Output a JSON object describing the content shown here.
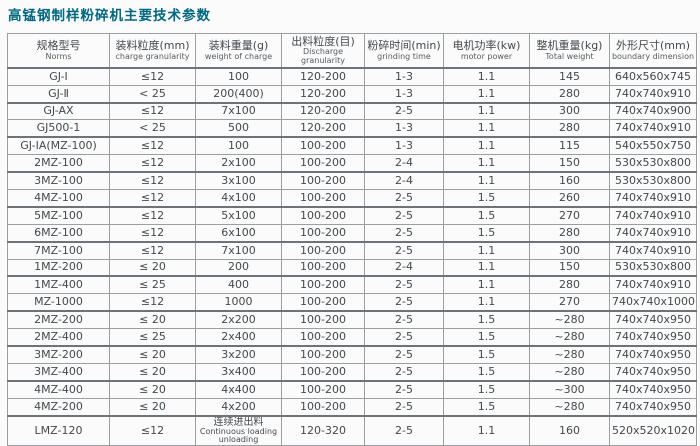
{
  "title": "高锰钢制样粉碎机主要技术参数",
  "colors": {
    "title_text": "#00677e",
    "body_text": "#43494d",
    "grid_line": "#9aa0a2",
    "grid_line_strong": "#6d7478",
    "background": "#fbfbfc"
  },
  "table": {
    "columns": [
      {
        "zh": "规格型号",
        "en": "Norms"
      },
      {
        "zh": "装料粒度(mm)",
        "en": "charge granularity"
      },
      {
        "zh": "装料重量(g)",
        "en": "weight of charge"
      },
      {
        "zh": "出料粒度(目)",
        "en": "Discharge granularity"
      },
      {
        "zh": "粉碎时间(min)",
        "en": "grinding time"
      },
      {
        "zh": "电机功率(kw)",
        "en": "motor power"
      },
      {
        "zh": "整机重量(kg)",
        "en": "Total weight"
      },
      {
        "zh": "外形尺寸(mm)",
        "en": "boundary dimension"
      }
    ],
    "rows": [
      [
        "GJ-Ⅰ",
        "≤12",
        "100",
        "120-200",
        "1-3",
        "1.1",
        "145",
        "640x560x745"
      ],
      [
        "GJ-Ⅱ",
        "< 25",
        "200(400)",
        "120-200",
        "1-3",
        "1.1",
        "280",
        "740x740x910"
      ],
      [
        "GJ-AX",
        "≤12",
        "7x100",
        "120-200",
        "2-5",
        "1.1",
        "300",
        "740x740x900"
      ],
      [
        "GJ500-1",
        "< 25",
        "500",
        "120-200",
        "1-3",
        "1.1",
        "280",
        "740x740x910"
      ],
      [
        "GJ-IA(MZ-100)",
        "≤12",
        "100",
        "100-200",
        "1-3",
        "1.1",
        "115",
        "540x550x750"
      ],
      [
        "2MZ-100",
        "≤12",
        "2x100",
        "100-200",
        "2-4",
        "1.1",
        "150",
        "530x530x800"
      ],
      [
        "3MZ-100",
        "≤12",
        "3x100",
        "100-200",
        "2-4",
        "1.1",
        "160",
        "530x530x800"
      ],
      [
        "4MZ-100",
        "≤12",
        "4x100",
        "100-200",
        "2-5",
        "1.5",
        "260",
        "740x740x910"
      ],
      [
        "5MZ-100",
        "≤12",
        "5x100",
        "100-200",
        "2-5",
        "1.5",
        "270",
        "740x740x910"
      ],
      [
        "6MZ-100",
        "≤12",
        "6x100",
        "100-200",
        "2-5",
        "1.5",
        "280",
        "740x740x910"
      ],
      [
        "7MZ-100",
        "≤12",
        "7x100",
        "100-200",
        "2-5",
        "1.1",
        "300",
        "740x740x910"
      ],
      [
        "1MZ-200",
        "≤ 20",
        "200",
        "100-200",
        "2-4",
        "1.1",
        "150",
        "530x530x800"
      ],
      [
        "1MZ-400",
        "≤ 25",
        "400",
        "100-200",
        "2-5",
        "1.1",
        "280",
        "740x740x910"
      ],
      [
        "MZ-1000",
        "≤12",
        "1000",
        "100-200",
        "2-5",
        "1.1",
        "270",
        "740x740x1000"
      ],
      [
        "2MZ-200",
        "≤ 20",
        "2x200",
        "100-200",
        "2-5",
        "1.5",
        "~280",
        "740x740x950"
      ],
      [
        "2MZ-400",
        "≤ 25",
        "2x400",
        "100-200",
        "2-5",
        "1.5",
        "~280",
        "740x740x950"
      ],
      [
        "3MZ-200",
        "≤ 20",
        "3x200",
        "100-200",
        "2-5",
        "1.5",
        "~280",
        "740x740x950"
      ],
      [
        "3MZ-400",
        "≤ 20",
        "3x400",
        "100-200",
        "2-5",
        "1.5",
        "~280",
        "740x740x950"
      ],
      [
        "4MZ-400",
        "≤ 20",
        "4x400",
        "100-200",
        "2-5",
        "1.5",
        "~300",
        "740x740x950"
      ],
      [
        "4MZ-200",
        "≤ 20",
        "4x200",
        "100-200",
        "2-5",
        "1.5",
        "~280",
        "740x740x950"
      ],
      [
        "LMZ-120",
        "≤12",
        {
          "zh": "连续进出料",
          "en": "Continuous loading unloading"
        },
        "120-320",
        "2-5",
        "1.1",
        "160",
        "520x520x1020"
      ]
    ]
  }
}
